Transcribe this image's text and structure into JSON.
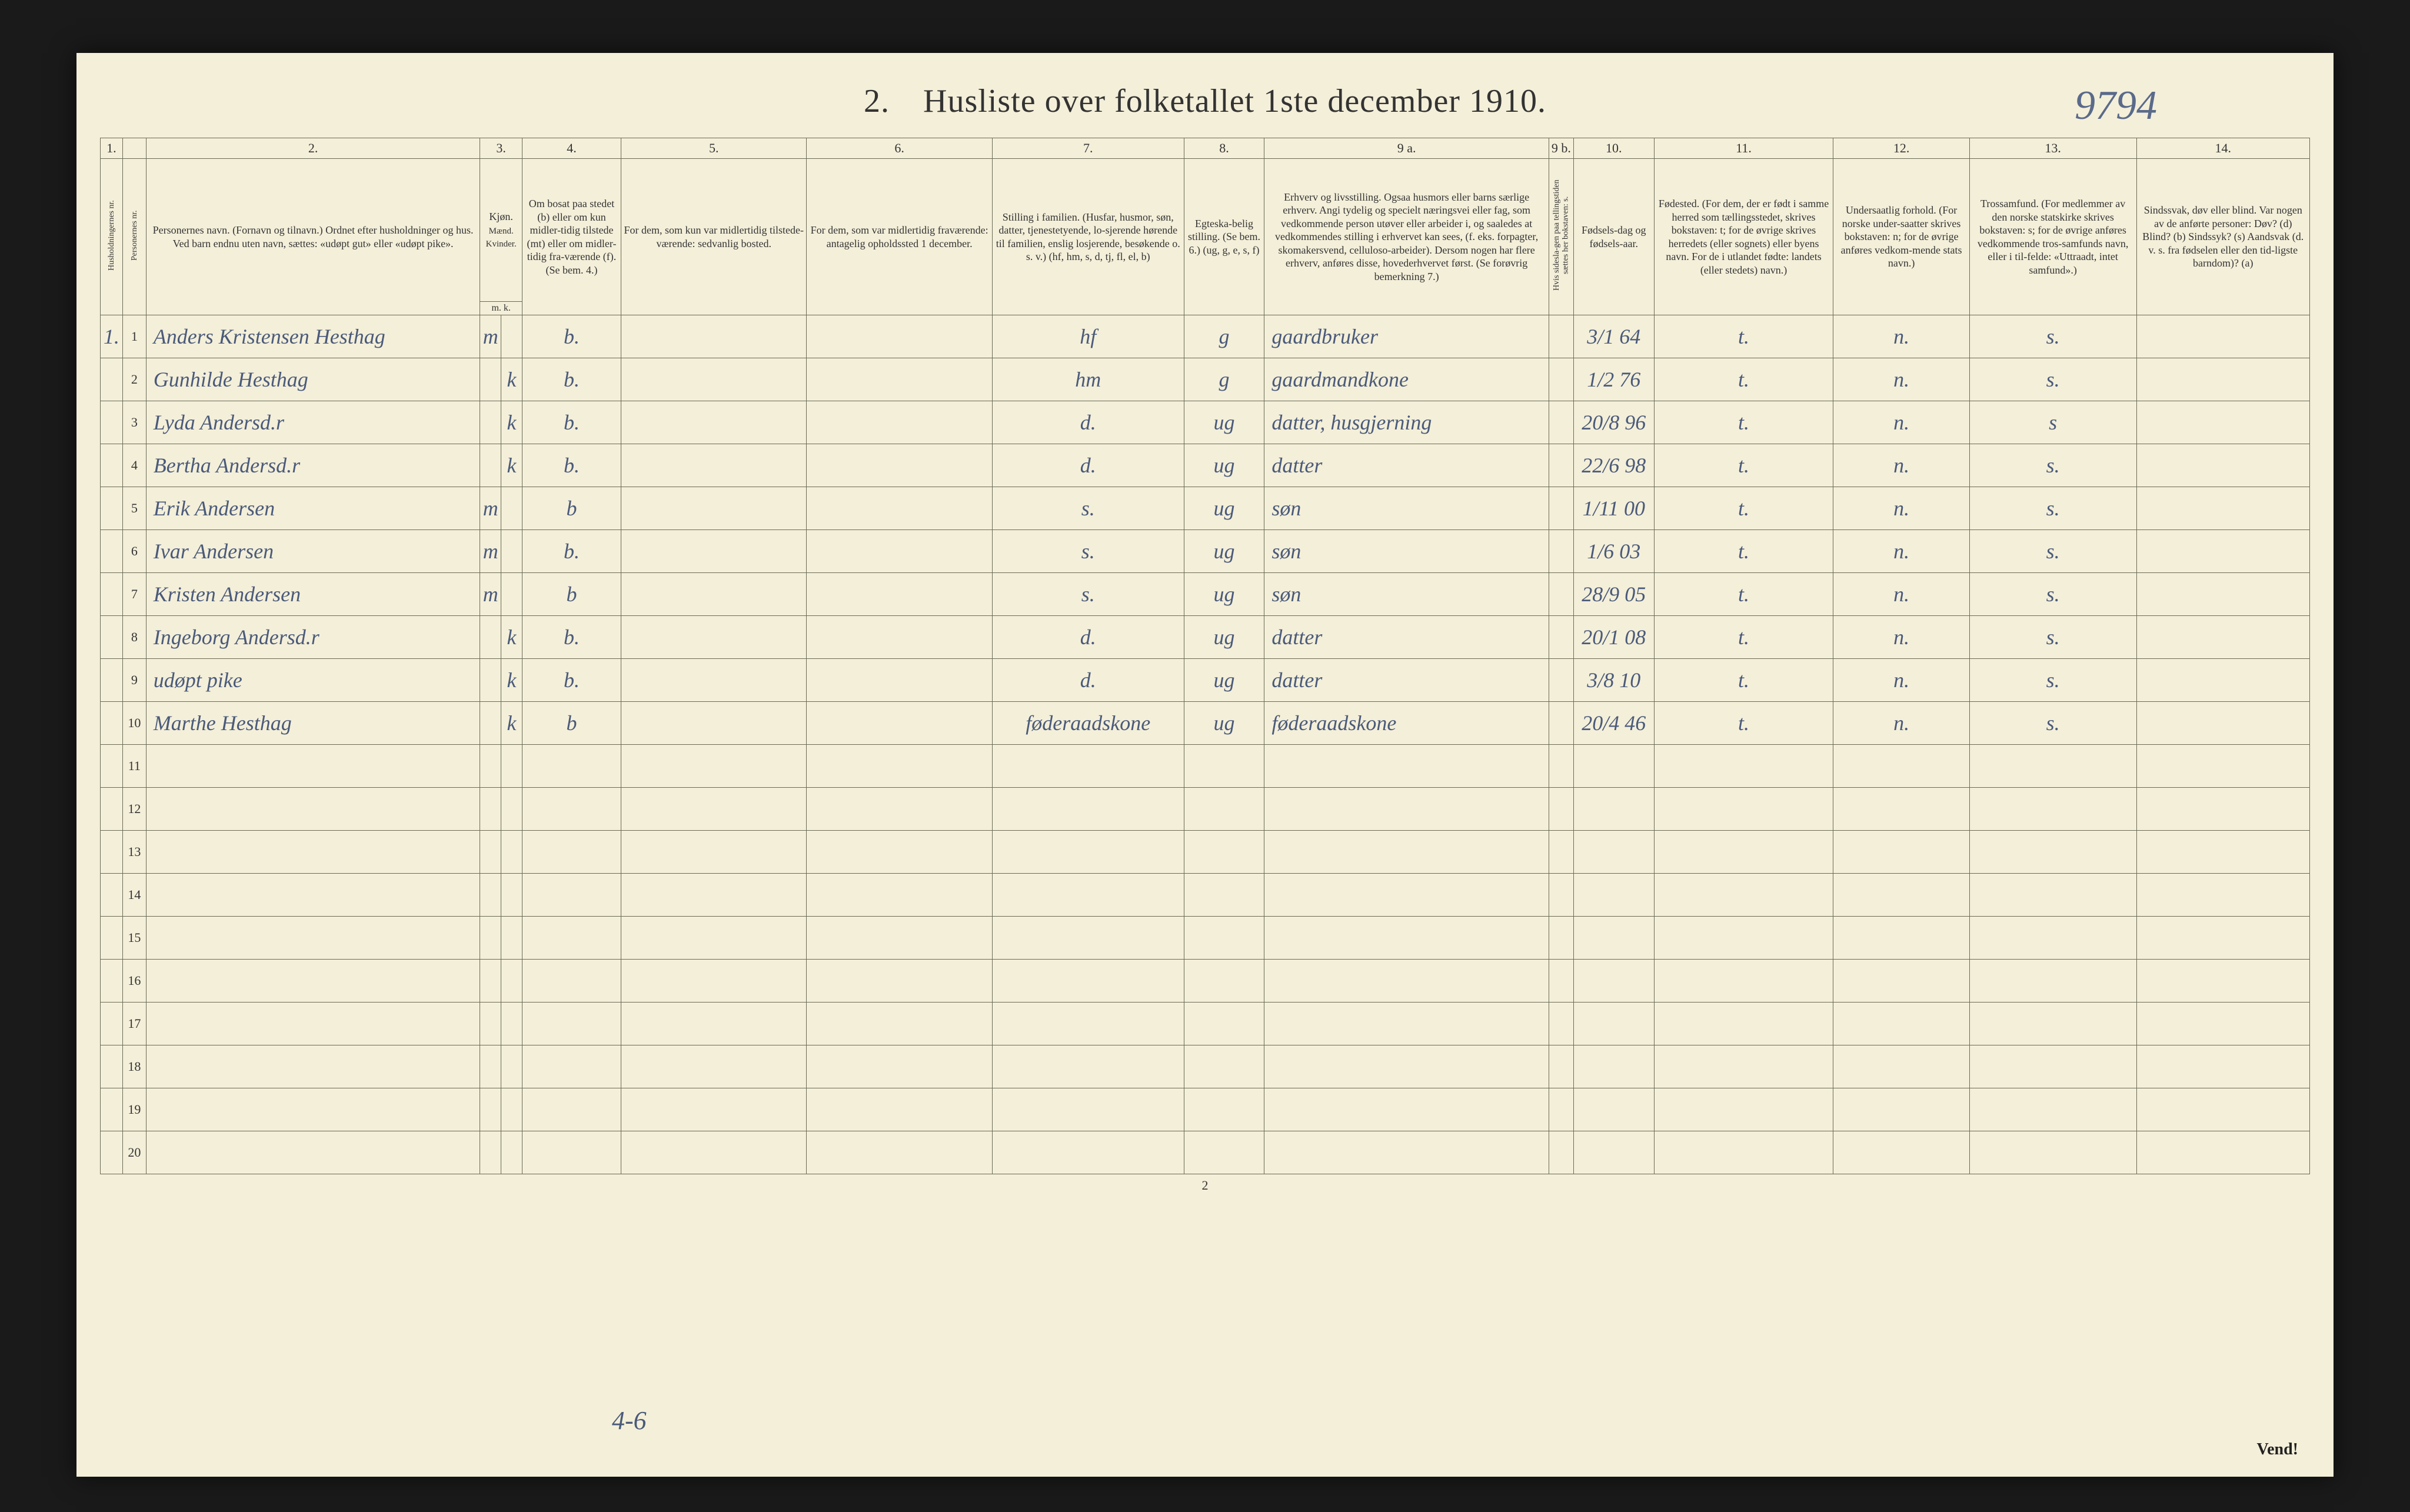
{
  "title": "2. Husliste over folketallet 1ste december 1910.",
  "topRightHandwritten": "9794",
  "pageNumber": "2",
  "vend": "Vend!",
  "bottomHandwritten": "4-6",
  "headerNumbers": [
    "1.",
    "",
    "2.",
    "3.",
    "",
    "4.",
    "5.",
    "6.",
    "7.",
    "8.",
    "9 a.",
    "9 b.",
    "10.",
    "11.",
    "12.",
    "13.",
    "14."
  ],
  "headers": {
    "hnr": "Husholdningernes nr.",
    "pnr": "Personernes nr.",
    "navn": "Personernes navn.\n(Fornavn og tilnavn.)\nOrdnet efter husholdninger og hus.\nVed barn endnu uten navn, sættes: «udøpt gut» eller «udøpt pike».",
    "kjon": "Kjøn.",
    "mand": "Mænd.",
    "kvinder": "Kvinder.",
    "mk": "m. k.",
    "bosat": "Om bosat paa stedet (b) eller om kun midler-tidig tilstede (mt) eller om midler-tidig fra-værende (f).\n(Se bem. 4.)",
    "midl": "For dem, som kun var midlertidig tilstede-værende:\nsedvanlig bosted.",
    "frav": "For dem, som var midlertidig fraværende:\nantagelig opholdssted 1 december.",
    "still": "Stilling i familien.\n(Husfar, husmor, søn, datter, tjenestetyende, lo-sjerende hørende til familien, enslig losjerende, besøkende o. s. v.)\n(hf, hm, s, d, tj, fl, el, b)",
    "egte": "Egteska-belig stilling.\n(Se bem. 6.)\n(ug, g, e, s, f)",
    "erhv": "Erhverv og livsstilling.\nOgsaa husmors eller barns særlige erhverv.\nAngi tydelig og specielt næringsvei eller fag, som vedkommende person utøver eller arbeider i, og saaledes at vedkommendes stilling i erhvervet kan sees, (f. eks. forpagter, skomakersvend, celluloso-arbeider). Dersom nogen har flere erhverv, anføres disse, hovederhvervet først.\n(Se forøvrig bemerkning 7.)",
    "hvis": "Hvis sidesla-gen paa tellingstiden sættes her bokstaven: s.",
    "fdag": "Fødsels-dag og fødsels-aar.",
    "fsted": "Fødested.\n(For dem, der er født i samme herred som tællingsstedet, skrives bokstaven: t; for de øvrige skrives herredets (eller sognets) eller byens navn. For de i utlandet fødte: landets (eller stedets) navn.)",
    "under": "Undersaatlig forhold.\n(For norske under-saatter skrives bokstaven: n; for de øvrige anføres vedkom-mende stats navn.)",
    "tros": "Trossamfund.\n(For medlemmer av den norske statskirke skrives bokstaven: s; for de øvrige anføres vedkommende tros-samfunds navn, eller i til-felde: «Uttraadt, intet samfund».)",
    "sind": "Sindssvak, døv eller blind.\nVar nogen av de anførte personer:\nDøv? (d)\nBlind? (b)\nSindssyk? (s)\nAandsvak (d. v. s. fra fødselen eller den tid-ligste barndom)? (a)"
  },
  "rows": [
    {
      "hnr": "1.",
      "pnr": "1",
      "navn": "Anders Kristensen Hesthag",
      "mk": "m",
      "kk": "",
      "bosat": "b.",
      "midl": "",
      "frav": "",
      "still": "hf",
      "egte": "g",
      "erhv": "gaardbruker",
      "hvis": "",
      "fdag": "3/1 64",
      "fsted": "t.",
      "under": "n.",
      "tros": "s.",
      "sind": ""
    },
    {
      "hnr": "",
      "pnr": "2",
      "navn": "Gunhilde Hesthag",
      "mk": "",
      "kk": "k",
      "bosat": "b.",
      "midl": "",
      "frav": "",
      "still": "hm",
      "egte": "g",
      "erhv": "gaardmandkone",
      "hvis": "",
      "fdag": "1/2 76",
      "fsted": "t.",
      "under": "n.",
      "tros": "s.",
      "sind": ""
    },
    {
      "hnr": "",
      "pnr": "3",
      "navn": "Lyda Andersd.r",
      "mk": "",
      "kk": "k",
      "bosat": "b.",
      "midl": "",
      "frav": "",
      "still": "d.",
      "egte": "ug",
      "erhv": "datter, husgjerning",
      "hvis": "",
      "fdag": "20/8 96",
      "fsted": "t.",
      "under": "n.",
      "tros": "s",
      "sind": ""
    },
    {
      "hnr": "",
      "pnr": "4",
      "navn": "Bertha Andersd.r",
      "mk": "",
      "kk": "k",
      "bosat": "b.",
      "midl": "",
      "frav": "",
      "still": "d.",
      "egte": "ug",
      "erhv": "datter",
      "hvis": "",
      "fdag": "22/6 98",
      "fsted": "t.",
      "under": "n.",
      "tros": "s.",
      "sind": ""
    },
    {
      "hnr": "",
      "pnr": "5",
      "navn": "Erik Andersen",
      "mk": "m",
      "kk": "",
      "bosat": "b",
      "midl": "",
      "frav": "",
      "still": "s.",
      "egte": "ug",
      "erhv": "søn",
      "hvis": "",
      "fdag": "1/11 00",
      "fsted": "t.",
      "under": "n.",
      "tros": "s.",
      "sind": ""
    },
    {
      "hnr": "",
      "pnr": "6",
      "navn": "Ivar Andersen",
      "mk": "m",
      "kk": "",
      "bosat": "b.",
      "midl": "",
      "frav": "",
      "still": "s.",
      "egte": "ug",
      "erhv": "søn",
      "hvis": "",
      "fdag": "1/6 03",
      "fsted": "t.",
      "under": "n.",
      "tros": "s.",
      "sind": ""
    },
    {
      "hnr": "",
      "pnr": "7",
      "navn": "Kristen Andersen",
      "mk": "m",
      "kk": "",
      "bosat": "b",
      "midl": "",
      "frav": "",
      "still": "s.",
      "egte": "ug",
      "erhv": "søn",
      "hvis": "",
      "fdag": "28/9 05",
      "fsted": "t.",
      "under": "n.",
      "tros": "s.",
      "sind": ""
    },
    {
      "hnr": "",
      "pnr": "8",
      "navn": "Ingeborg Andersd.r",
      "mk": "",
      "kk": "k",
      "bosat": "b.",
      "midl": "",
      "frav": "",
      "still": "d.",
      "egte": "ug",
      "erhv": "datter",
      "hvis": "",
      "fdag": "20/1 08",
      "fsted": "t.",
      "under": "n.",
      "tros": "s.",
      "sind": ""
    },
    {
      "hnr": "",
      "pnr": "9",
      "navn": "udøpt pike",
      "mk": "",
      "kk": "k",
      "bosat": "b.",
      "midl": "",
      "frav": "",
      "still": "d.",
      "egte": "ug",
      "erhv": "datter",
      "hvis": "",
      "fdag": "3/8 10",
      "fsted": "t.",
      "under": "n.",
      "tros": "s.",
      "sind": ""
    },
    {
      "hnr": "",
      "pnr": "10",
      "navn": "Marthe Hesthag",
      "mk": "",
      "kk": "k",
      "bosat": "b",
      "midl": "",
      "frav": "",
      "still": "føderaadskone",
      "egte": "ug",
      "erhv": "føderaadskone",
      "hvis": "",
      "fdag": "20/4 46",
      "fsted": "t.",
      "under": "n.",
      "tros": "s.",
      "sind": ""
    }
  ],
  "emptyRowNumbers": [
    "11",
    "12",
    "13",
    "14",
    "15",
    "16",
    "17",
    "18",
    "19",
    "20"
  ],
  "colors": {
    "paper": "#f4efd9",
    "ink": "#333333",
    "handInk": "#4a5a7a",
    "rule": "#6a6a55"
  }
}
